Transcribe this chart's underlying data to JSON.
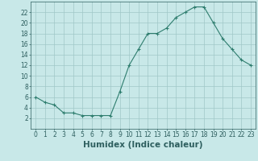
{
  "x": [
    0,
    1,
    2,
    3,
    4,
    5,
    6,
    7,
    8,
    9,
    10,
    11,
    12,
    13,
    14,
    15,
    16,
    17,
    18,
    19,
    20,
    21,
    22,
    23
  ],
  "y": [
    6,
    5,
    4.5,
    3,
    3,
    2.5,
    2.5,
    2.5,
    2.5,
    7,
    12,
    15,
    18,
    18,
    19,
    21,
    22,
    23,
    23,
    20,
    17,
    15,
    13,
    12
  ],
  "line_color": "#2e7d6e",
  "marker": "+",
  "bg_color": "#c8e8e8",
  "grid_color": "#a0c8c8",
  "xlabel": "Humidex (Indice chaleur)",
  "ylim": [
    0,
    24
  ],
  "xlim": [
    -0.5,
    23.5
  ],
  "yticks": [
    2,
    4,
    6,
    8,
    10,
    12,
    14,
    16,
    18,
    20,
    22
  ],
  "xticks": [
    0,
    1,
    2,
    3,
    4,
    5,
    6,
    7,
    8,
    9,
    10,
    11,
    12,
    13,
    14,
    15,
    16,
    17,
    18,
    19,
    20,
    21,
    22,
    23
  ],
  "font_color": "#2e5f5f",
  "tick_fontsize": 5.5,
  "xlabel_fontsize": 7.5
}
